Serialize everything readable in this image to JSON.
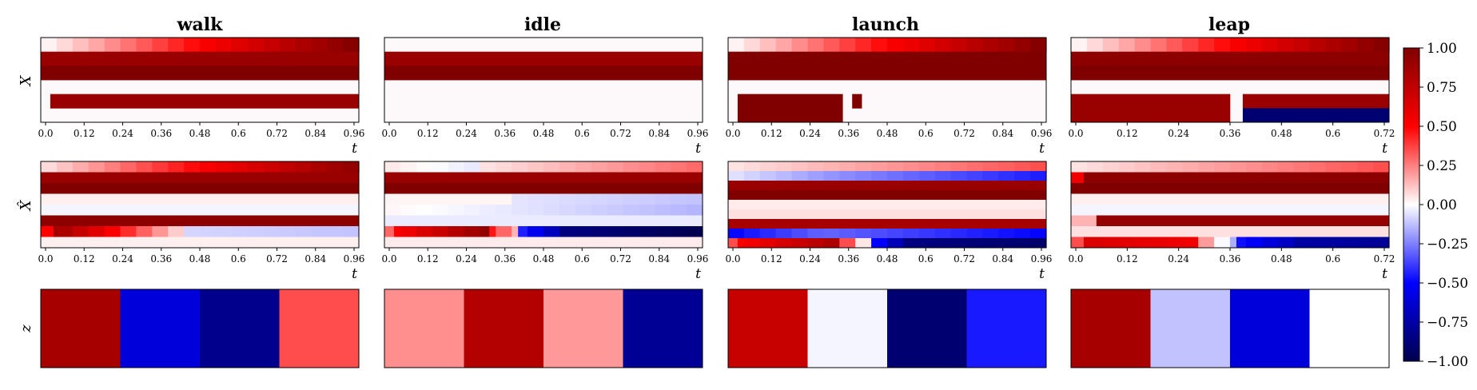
{
  "chart_data": {
    "type": "heatmap",
    "colormap": "seismic",
    "colorbar": {
      "vmin": -1.0,
      "vmax": 1.0,
      "ticks": [
        "1.00",
        "0.75",
        "0.50",
        "0.25",
        "0.00",
        "−0.25",
        "−0.50",
        "−0.75",
        "−1.00"
      ]
    },
    "row_labels": [
      "X",
      "X̂",
      "z"
    ],
    "xlabel": "t",
    "panels": [
      {
        "title": "walk",
        "xticks": [
          "0.0",
          "0.12",
          "0.24",
          "0.36",
          "0.48",
          "0.6",
          "0.72",
          "0.84",
          "0.96"
        ],
        "X": [
          {
            "row": 0,
            "segments": [
              {
                "from": 0.0,
                "to": 1.0,
                "ramp": [
                  0.0,
                  1.0
                ]
              }
            ]
          },
          {
            "row": 1,
            "segments": [
              {
                "from": 0.0,
                "to": 1.0,
                "value": 0.9
              }
            ]
          },
          {
            "row": 2,
            "segments": [
              {
                "from": 0.0,
                "to": 1.0,
                "value": 1.0
              }
            ]
          },
          {
            "row": 4,
            "segments": [
              {
                "from": 0.03,
                "to": 1.0,
                "value": 0.9
              }
            ]
          }
        ],
        "Xhat": [
          {
            "row": 0,
            "segments": [
              {
                "from": 0.0,
                "to": 1.0,
                "ramp": [
                  0.05,
                  0.95
                ]
              }
            ]
          },
          {
            "row": 1,
            "segments": [
              {
                "from": 0.0,
                "to": 1.0,
                "value": 0.9
              }
            ]
          },
          {
            "row": 2,
            "segments": [
              {
                "from": 0.0,
                "to": 1.0,
                "value": 1.0
              }
            ]
          },
          {
            "row": 3,
            "segments": [
              {
                "from": 0.0,
                "to": 1.0,
                "value": 0.03
              }
            ]
          },
          {
            "row": 4,
            "segments": [
              {
                "from": 0.0,
                "to": 1.0,
                "value": -0.02
              }
            ]
          },
          {
            "row": 5,
            "segments": [
              {
                "from": 0.0,
                "to": 1.0,
                "value": 0.95
              }
            ]
          },
          {
            "row": 6,
            "segments": [
              {
                "from": 0.0,
                "to": 0.04,
                "value": 0.5
              },
              {
                "from": 0.04,
                "to": 0.45,
                "ramp": [
                  0.9,
                  0.05
                ]
              },
              {
                "from": 0.45,
                "to": 1.0,
                "ramp": [
                  -0.08,
                  -0.12
                ]
              }
            ]
          },
          {
            "row": 7,
            "segments": [
              {
                "from": 0.0,
                "to": 1.0,
                "value": 0.03
              }
            ]
          }
        ],
        "z": [
          0.85,
          -0.6,
          -0.82,
          0.35
        ]
      },
      {
        "title": "idle",
        "xticks": [
          "0.0",
          "0.12",
          "0.24",
          "0.36",
          "0.48",
          "0.6",
          "0.72",
          "0.84",
          "0.96"
        ],
        "X": [
          {
            "row": 1,
            "segments": [
              {
                "from": 0.0,
                "to": 1.0,
                "value": 0.9
              }
            ]
          },
          {
            "row": 2,
            "segments": [
              {
                "from": 0.0,
                "to": 1.0,
                "value": 1.0
              }
            ]
          }
        ],
        "Xhat": [
          {
            "row": 0,
            "segments": [
              {
                "from": 0.0,
                "to": 0.3,
                "ramp": [
                  0.05,
                  -0.05
                ]
              },
              {
                "from": 0.3,
                "to": 1.0,
                "ramp": [
                  0.05,
                  0.3
                ]
              }
            ]
          },
          {
            "row": 1,
            "segments": [
              {
                "from": 0.0,
                "to": 1.0,
                "value": 0.9
              }
            ]
          },
          {
            "row": 2,
            "segments": [
              {
                "from": 0.0,
                "to": 1.0,
                "value": 1.0
              }
            ]
          },
          {
            "row": 3,
            "segments": [
              {
                "from": 0.0,
                "to": 0.4,
                "value": 0.02
              },
              {
                "from": 0.4,
                "to": 1.0,
                "ramp": [
                  -0.05,
                  -0.12
                ]
              }
            ]
          },
          {
            "row": 4,
            "segments": [
              {
                "from": 0.0,
                "to": 1.0,
                "ramp": [
                  0.02,
                  -0.15
                ]
              }
            ]
          },
          {
            "row": 5,
            "segments": [
              {
                "from": 0.0,
                "to": 1.0,
                "value": -0.04
              }
            ]
          },
          {
            "row": 6,
            "segments": [
              {
                "from": 0.0,
                "to": 0.03,
                "value": 0.3
              },
              {
                "from": 0.03,
                "to": 0.33,
                "ramp": [
                  0.5,
                  0.95
                ]
              },
              {
                "from": 0.33,
                "to": 0.42,
                "ramp": [
                  0.5,
                  0.1
                ]
              },
              {
                "from": 0.42,
                "to": 0.55,
                "ramp": [
                  -0.4,
                  -0.75
                ]
              },
              {
                "from": 0.55,
                "to": 1.0,
                "ramp": [
                  -0.85,
                  -1.0
                ]
              }
            ]
          },
          {
            "row": 7,
            "segments": [
              {
                "from": 0.0,
                "to": 1.0,
                "value": 0.04
              }
            ]
          }
        ],
        "z": [
          0.22,
          0.8,
          0.2,
          -0.8
        ]
      },
      {
        "title": "launch",
        "xticks": [
          "0.0",
          "0.12",
          "0.24",
          "0.36",
          "0.48",
          "0.6",
          "0.72",
          "0.84",
          "0.96"
        ],
        "X": [
          {
            "row": 0,
            "segments": [
              {
                "from": 0.0,
                "to": 1.0,
                "ramp": [
                  0.0,
                  1.0
                ]
              }
            ]
          },
          {
            "row": 1,
            "segments": [
              {
                "from": 0.0,
                "to": 1.0,
                "value": 1.0
              }
            ]
          },
          {
            "row": 2,
            "segments": [
              {
                "from": 0.0,
                "to": 1.0,
                "value": 1.0
              }
            ]
          },
          {
            "row": 4,
            "segments": [
              {
                "from": 0.03,
                "to": 0.36,
                "value": 1.0
              },
              {
                "from": 0.39,
                "to": 0.42,
                "value": 1.0
              }
            ]
          },
          {
            "row": 5,
            "segments": [
              {
                "from": 0.03,
                "to": 0.36,
                "value": 1.0
              }
            ]
          }
        ],
        "Xhat": [
          {
            "row": 0,
            "segments": [
              {
                "from": 0.0,
                "to": 1.0,
                "ramp": [
                  0.05,
                  0.35
                ]
              }
            ]
          },
          {
            "row": 1,
            "segments": [
              {
                "from": 0.0,
                "to": 0.3,
                "ramp": [
                  -0.05,
                  -0.2
                ]
              },
              {
                "from": 0.3,
                "to": 1.0,
                "ramp": [
                  -0.2,
                  -0.45
                ]
              }
            ]
          },
          {
            "row": 2,
            "segments": [
              {
                "from": 0.0,
                "to": 1.0,
                "value": 0.9
              }
            ]
          },
          {
            "row": 3,
            "segments": [
              {
                "from": 0.0,
                "to": 1.0,
                "value": 1.0
              }
            ]
          },
          {
            "row": 4,
            "segments": [
              {
                "from": 0.0,
                "to": 1.0,
                "value": 0.04
              }
            ]
          },
          {
            "row": 5,
            "segments": [
              {
                "from": 0.0,
                "to": 1.0,
                "value": 0.06
              }
            ]
          },
          {
            "row": 6,
            "segments": [
              {
                "from": 0.0,
                "to": 1.0,
                "value": 0.85
              }
            ]
          },
          {
            "row": 7,
            "segments": [
              {
                "from": 0.0,
                "to": 0.3,
                "ramp": [
                  -0.5,
                  -0.3
                ]
              },
              {
                "from": 0.3,
                "to": 1.0,
                "ramp": [
                  -0.3,
                  -0.5
                ]
              }
            ]
          },
          {
            "row": 8,
            "segments": [
              {
                "from": 0.0,
                "to": 0.03,
                "value": 0.35
              },
              {
                "from": 0.03,
                "to": 0.35,
                "ramp": [
                  0.5,
                  0.85
                ]
              },
              {
                "from": 0.35,
                "to": 0.45,
                "ramp": [
                  0.5,
                  -0.1
                ]
              },
              {
                "from": 0.45,
                "to": 0.55,
                "ramp": [
                  -0.4,
                  -0.8
                ]
              },
              {
                "from": 0.55,
                "to": 1.0,
                "ramp": [
                  -0.85,
                  -0.92
                ]
              }
            ]
          }
        ],
        "z": [
          0.72,
          -0.02,
          -0.9,
          -0.45
        ]
      },
      {
        "title": "leap",
        "xticks": [
          "0.0",
          "0.12",
          "0.24",
          "0.36",
          "0.48",
          "0.6",
          "0.72"
        ],
        "X": [
          {
            "row": 0,
            "segments": [
              {
                "from": 0.0,
                "to": 1.0,
                "ramp": [
                  0.0,
                  1.0
                ]
              }
            ]
          },
          {
            "row": 1,
            "segments": [
              {
                "from": 0.0,
                "to": 1.0,
                "value": 0.95
              }
            ]
          },
          {
            "row": 2,
            "segments": [
              {
                "from": 0.0,
                "to": 1.0,
                "value": 1.0
              }
            ]
          },
          {
            "row": 4,
            "segments": [
              {
                "from": 0.0,
                "to": 0.5,
                "value": 0.9
              },
              {
                "from": 0.54,
                "to": 1.0,
                "value": 0.9
              }
            ]
          },
          {
            "row": 5,
            "segments": [
              {
                "from": 0.0,
                "to": 0.5,
                "value": 0.9
              },
              {
                "from": 0.54,
                "to": 1.0,
                "value": -0.9
              }
            ]
          }
        ],
        "Xhat": [
          {
            "row": 0,
            "segments": [
              {
                "from": 0.0,
                "to": 1.0,
                "ramp": [
                  0.05,
                  0.35
                ]
              }
            ]
          },
          {
            "row": 1,
            "segments": [
              {
                "from": 0.0,
                "to": 0.04,
                "value": 0.55
              },
              {
                "from": 0.04,
                "to": 1.0,
                "value": 0.95
              }
            ]
          },
          {
            "row": 2,
            "segments": [
              {
                "from": 0.0,
                "to": 1.0,
                "value": 1.0
              }
            ]
          },
          {
            "row": 3,
            "segments": [
              {
                "from": 0.0,
                "to": 1.0,
                "value": 0.03
              }
            ]
          },
          {
            "row": 4,
            "segments": [
              {
                "from": 0.0,
                "to": 1.0,
                "value": -0.02
              }
            ]
          },
          {
            "row": 5,
            "segments": [
              {
                "from": 0.0,
                "to": 0.08,
                "value": 0.15
              },
              {
                "from": 0.08,
                "to": 1.0,
                "value": 0.92
              }
            ]
          },
          {
            "row": 6,
            "segments": [
              {
                "from": 0.0,
                "to": 1.0,
                "value": 0.06
              }
            ]
          },
          {
            "row": 7,
            "segments": [
              {
                "from": 0.0,
                "to": 0.04,
                "value": 0.35
              },
              {
                "from": 0.04,
                "to": 0.4,
                "ramp": [
                  0.65,
                  0.55
                ]
              },
              {
                "from": 0.4,
                "to": 0.52,
                "ramp": [
                  0.3,
                  -0.2
                ]
              },
              {
                "from": 0.52,
                "to": 0.7,
                "ramp": [
                  -0.45,
                  -0.7
                ]
              },
              {
                "from": 0.7,
                "to": 1.0,
                "ramp": [
                  -0.75,
                  -0.8
                ]
              }
            ]
          }
        ],
        "z": [
          0.85,
          -0.12,
          -0.6,
          0.0
        ]
      }
    ]
  }
}
